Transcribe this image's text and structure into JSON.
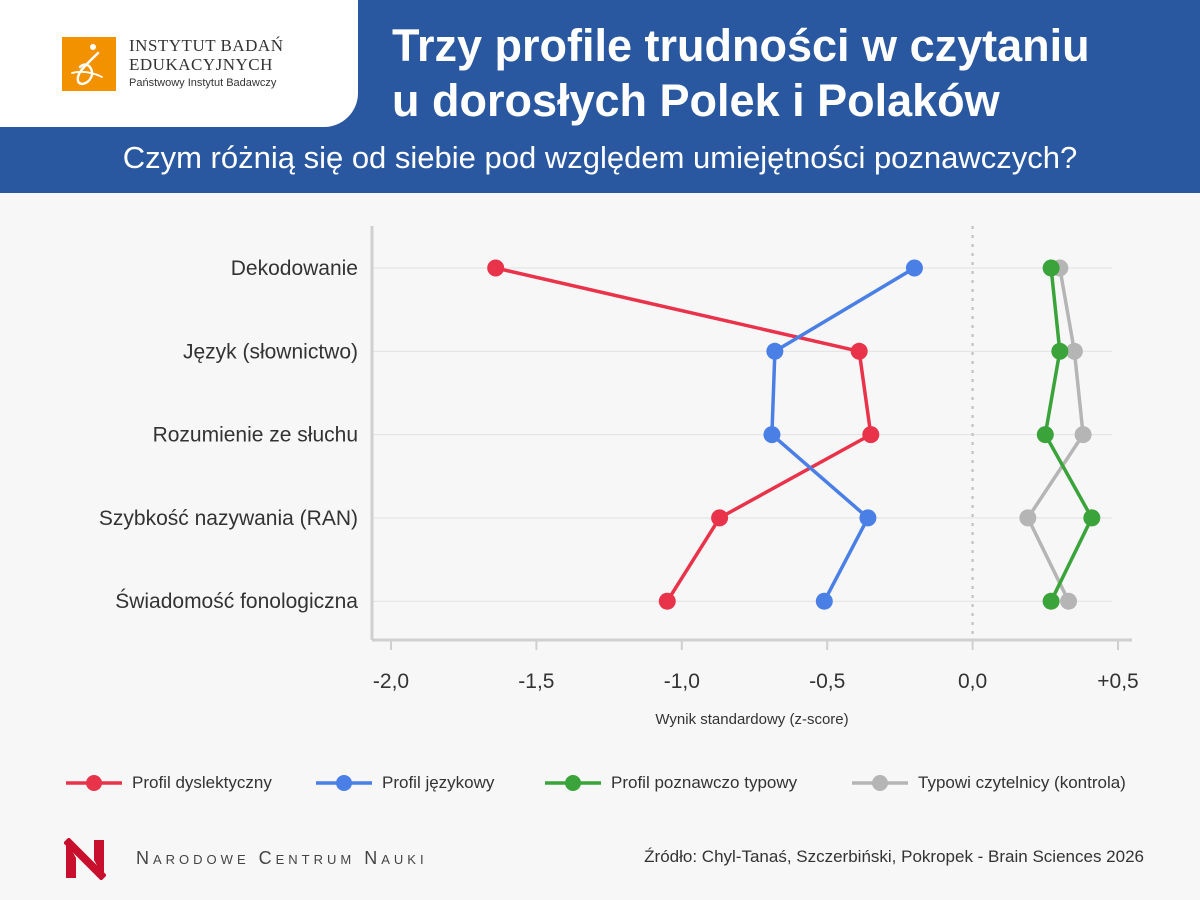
{
  "header": {
    "logo": {
      "line1": "INSTYTUT BADAŃ",
      "line2": "EDUKACYJNYCH",
      "line3": "Państwowy Instytut Badawczy",
      "color": "#f39200"
    },
    "title_line1": "Trzy profile trudności w czytaniu",
    "title_line2": "u dorosłych Polek i Polaków",
    "subtitle": "Czym różnią się od siebie pod względem umiejętności poznawczych?",
    "background": "#2a58a0"
  },
  "chart_data": {
    "type": "line",
    "orientation": "horizontal",
    "categories": [
      "Dekodowanie",
      "Język (słownictwo)",
      "Rozumienie ze słuchu",
      "Szybkość nazywania (RAN)",
      "Świadomość fonologiczna"
    ],
    "xlim": [
      -2.05,
      0.55
    ],
    "xticks": [
      -2.0,
      -1.5,
      -1.0,
      -0.5,
      0.0,
      0.5
    ],
    "xtick_labels": [
      "-2,0",
      "-1,5",
      "-1,0",
      "-0,5",
      "0,0",
      "+0,5"
    ],
    "xlabel": "Wynik standardowy (z-score)",
    "reference_line": 0.0,
    "grid": true,
    "series": [
      {
        "name": "Profil dyslektyczny",
        "color": "#e8334a",
        "values": [
          -1.64,
          -0.39,
          -0.35,
          -0.87,
          -1.05
        ]
      },
      {
        "name": "Profil językowy",
        "color": "#4a7fe6",
        "values": [
          -0.2,
          -0.68,
          -0.69,
          -0.36,
          -0.51
        ]
      },
      {
        "name": "Typowi czytelnicy (kontrola)",
        "color": "#b5b5b5",
        "values": [
          0.3,
          0.35,
          0.38,
          0.19,
          0.33
        ]
      },
      {
        "name": "Profil poznawczo typowy",
        "color": "#3aa33a",
        "values": [
          0.27,
          0.3,
          0.25,
          0.41,
          0.27
        ]
      }
    ],
    "legend_order": [
      "Profil dyslektyczny",
      "Profil językowy",
      "Profil poznawczo typowy",
      "Typowi czytelnicy (kontrola)"
    ],
    "legend_position": "bottom"
  },
  "footer": {
    "org": "Narodowe Centrum Nauki",
    "source": "Źródło: Chyl-Tanaś, Szczerbiński, Pokropek - Brain Sciences 2026"
  }
}
